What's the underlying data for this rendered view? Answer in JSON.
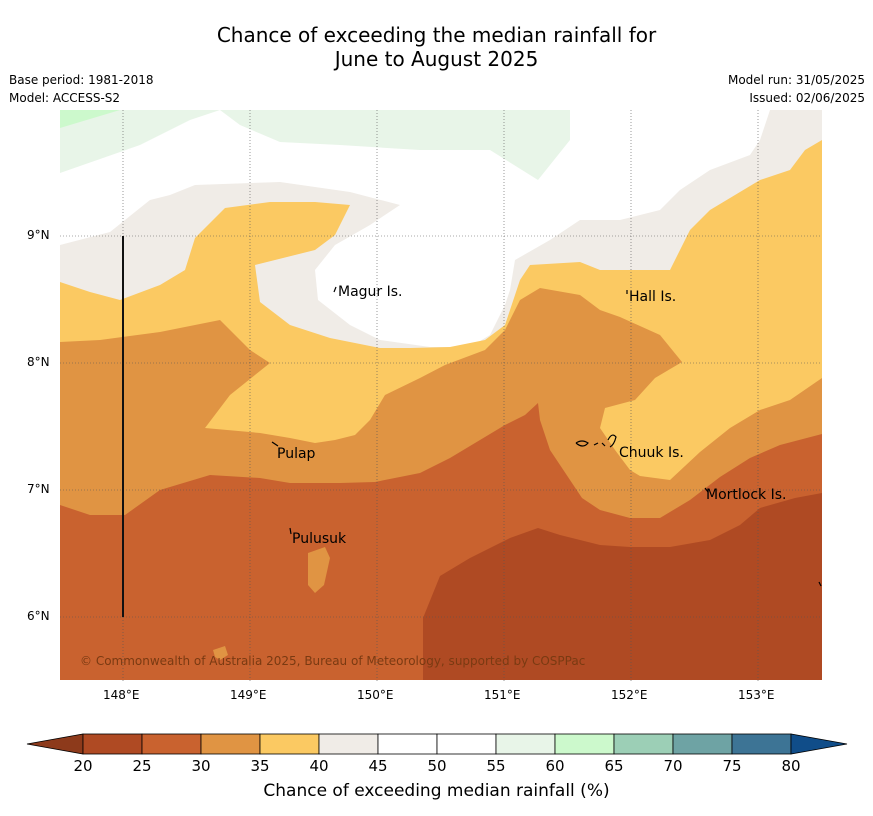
{
  "title": {
    "line1": "Chance of exceeding the median rainfall for",
    "line2": "June to August 2025"
  },
  "meta": {
    "base_period": "Base period: 1981-2018",
    "model": "Model: ACCESS-S2",
    "model_run": "Model run: 31/05/2025",
    "issued": "Issued: 02/06/2025"
  },
  "axes": {
    "lat_ticks": [
      "9°N",
      "8°N",
      "7°N",
      "6°N"
    ],
    "lon_ticks": [
      "148°E",
      "149°E",
      "150°E",
      "151°E",
      "152°E",
      "153°E"
    ],
    "lat_range": [
      5.5,
      10.0
    ],
    "lon_range": [
      147.5,
      153.5
    ]
  },
  "places": [
    {
      "name": "Magur Is.",
      "lon": 149.67,
      "lat": 8.57
    },
    {
      "name": "Hall Is.",
      "lon": 151.97,
      "lat": 8.53
    },
    {
      "name": "Pulap",
      "lon": 149.18,
      "lat": 7.32
    },
    {
      "name": "Chuuk Is.",
      "lon": 151.88,
      "lat": 7.32
    },
    {
      "name": "Mortlock Is.",
      "lon": 152.6,
      "lat": 6.98
    },
    {
      "name": "Pulusuk",
      "lon": 149.3,
      "lat": 6.67
    }
  ],
  "copyright": "© Commonwealth of Australia 2025, Bureau of Meteorology, supported by COSPPac",
  "colorbar": {
    "label": "Chance of exceeding median rainfall (%)",
    "ticks": [
      "20",
      "25",
      "30",
      "35",
      "40",
      "45",
      "50",
      "55",
      "60",
      "65",
      "70",
      "75",
      "80"
    ],
    "colors": [
      "#af4a23",
      "#c9622f",
      "#e09443",
      "#fbc962",
      "#f0ece7",
      "#ffffff",
      "#ffffff",
      "#e8f5e8",
      "#ccf9cc",
      "#9ccfb6",
      "#6ea3a4",
      "#3d7495"
    ],
    "under_color": "#8d3a1b",
    "over_color": "#104d89"
  },
  "legend_colors": {
    "p20_25": "#af4a23",
    "p25_30": "#c9622f",
    "p30_35": "#e09443",
    "p35_40": "#fbc962",
    "p40_45": "#f0ece7",
    "p55_60": "#e8f5e8",
    "p60_65": "#ccf9cc"
  }
}
